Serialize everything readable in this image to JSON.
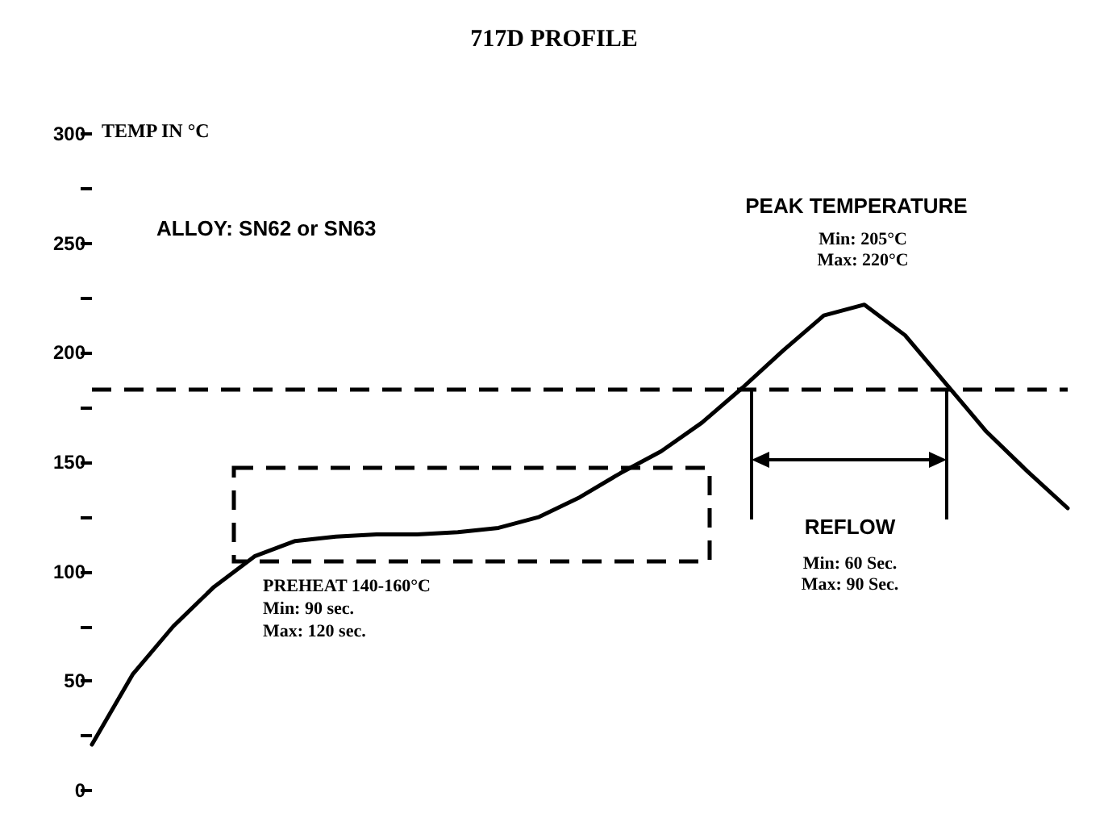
{
  "chart_data": {
    "type": "line",
    "title": "717D PROFILE",
    "ylabel": "TEMP IN °C",
    "categories": [
      null,
      null,
      null,
      null,
      null,
      null,
      null,
      null,
      null,
      null,
      null,
      null,
      null,
      null,
      null,
      null,
      null,
      null,
      null,
      null,
      null,
      null,
      null,
      null,
      null
    ],
    "ylim": [
      0,
      300
    ],
    "yticks": [
      0,
      {
        "value": 25,
        "label": null
      },
      50,
      {
        "value": 75,
        "label": null
      },
      100,
      {
        "value": 125,
        "label": null
      },
      150,
      {
        "value": 175,
        "label": null
      },
      200,
      {
        "value": 225,
        "label": null
      },
      250,
      {
        "value": 275,
        "label": null
      },
      300
    ],
    "tick_labels": "y",
    "grid": false,
    "marker": "none",
    "line_style": "solid",
    "series": [
      {
        "color": "#000000",
        "values": [
          21,
          53,
          75,
          93,
          107,
          114,
          116,
          117,
          117,
          118,
          120,
          125,
          134,
          145,
          155,
          168,
          184,
          201,
          217,
          222,
          208,
          186,
          164,
          146,
          129
        ]
      }
    ],
    "ref_lines": [
      {
        "axis": "y",
        "value": 183,
        "color": "#000000",
        "line_style": "dashed"
      }
    ],
    "annotations": [
      "ALLOY: SN62 or SN63",
      "PEAK TEMPERATURE",
      "Min: 205°C",
      "Max: 220°C",
      "REFLOW",
      "Min: 60 Sec.",
      "Max: 90 Sec.",
      "PREHEAT 140-160°C",
      "Min: 90 sec.",
      "Max: 120 sec."
    ]
  }
}
